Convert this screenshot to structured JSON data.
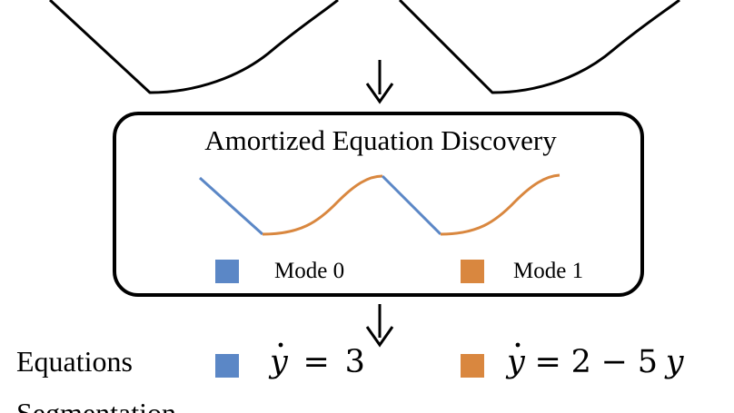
{
  "box": {
    "title": "Amortized Equation Discovery"
  },
  "legend": {
    "mode0_label": "Mode 0",
    "mode1_label": "Mode 1"
  },
  "equations": {
    "row_label": "Equations",
    "mode0": {
      "var": "y",
      "op": "=",
      "rhs": "3"
    },
    "mode1": {
      "var": "y",
      "op": "=",
      "rhs_a": "2",
      "rhs_op": "−",
      "rhs_b": "5",
      "rhs_var": "y"
    }
  },
  "segmentation": {
    "row_label": "Segmentation"
  },
  "colors": {
    "mode0": "#5b87c6",
    "mode1": "#d9873f",
    "ink": "#000000"
  }
}
